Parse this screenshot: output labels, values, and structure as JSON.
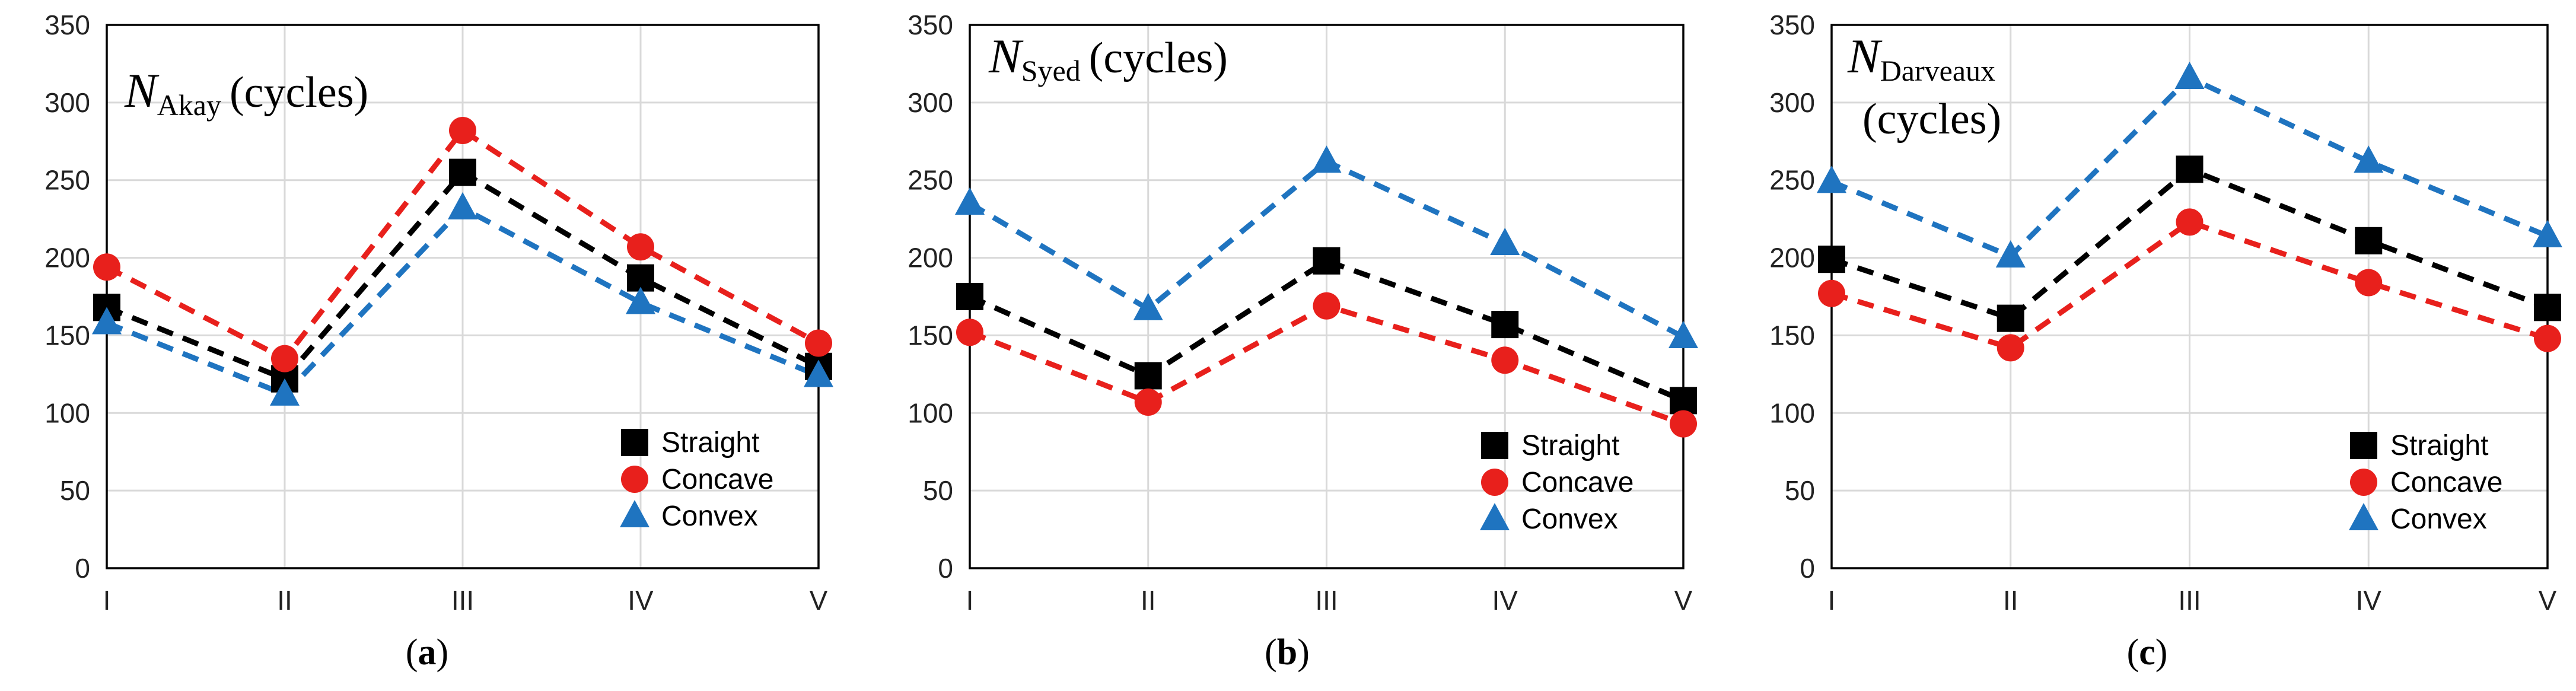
{
  "colors": {
    "Straight": "#000000",
    "Concave": "#e8201c",
    "Convex": "#1f74c0",
    "grid": "#d9d9d9",
    "axis": "#000000"
  },
  "chart_data": [
    {
      "type": "line",
      "title": {
        "main": "N",
        "sub": "Akay",
        "unit": "(cycles)"
      },
      "panel_label": {
        "open": "(",
        "letter": "a",
        "close": ")"
      },
      "categories": [
        "I",
        "II",
        "III",
        "IV",
        "V"
      ],
      "y_ticks": [
        "0",
        "50",
        "100",
        "150",
        "200",
        "250",
        "300",
        "350"
      ],
      "ylim": [
        0,
        350
      ],
      "grid": true,
      "legend": "bottom-right",
      "series": [
        {
          "name": "Straight",
          "marker": "square",
          "values": [
            168,
            122,
            255,
            187,
            130
          ]
        },
        {
          "name": "Concave",
          "marker": "circle",
          "values": [
            194,
            135,
            282,
            207,
            145
          ]
        },
        {
          "name": "Convex",
          "marker": "triangle",
          "values": [
            158,
            112,
            232,
            171,
            124
          ]
        }
      ]
    },
    {
      "type": "line",
      "title": {
        "main": "N",
        "sub": "Syed",
        "unit": "(cycles)"
      },
      "panel_label": {
        "open": "(",
        "letter": "b",
        "close": ")"
      },
      "categories": [
        "I",
        "II",
        "III",
        "IV",
        "V"
      ],
      "y_ticks": [
        "0",
        "50",
        "100",
        "150",
        "200",
        "250",
        "300",
        "350"
      ],
      "ylim": [
        0,
        350
      ],
      "grid": true,
      "legend": "bottom-right",
      "series": [
        {
          "name": "Straight",
          "marker": "square",
          "values": [
            175,
            124,
            198,
            157,
            108
          ]
        },
        {
          "name": "Concave",
          "marker": "circle",
          "values": [
            152,
            107,
            169,
            134,
            93
          ]
        },
        {
          "name": "Convex",
          "marker": "triangle",
          "values": [
            235,
            167,
            262,
            209,
            149
          ]
        }
      ]
    },
    {
      "type": "line",
      "title": {
        "main": "N",
        "sub": "Darveaux",
        "unit": "(cycles)"
      },
      "panel_label": {
        "open": "(",
        "letter": "c",
        "close": ")"
      },
      "categories": [
        "I",
        "II",
        "III",
        "IV",
        "V"
      ],
      "y_ticks": [
        "0",
        "50",
        "100",
        "150",
        "200",
        "250",
        "300",
        "350"
      ],
      "ylim": [
        0,
        350
      ],
      "grid": true,
      "legend": "bottom-right",
      "series": [
        {
          "name": "Straight",
          "marker": "square",
          "values": [
            199,
            161,
            257,
            211,
            168
          ]
        },
        {
          "name": "Concave",
          "marker": "circle",
          "values": [
            177,
            142,
            223,
            184,
            148
          ]
        },
        {
          "name": "Convex",
          "marker": "triangle",
          "values": [
            249,
            201,
            316,
            262,
            214
          ]
        }
      ]
    }
  ]
}
